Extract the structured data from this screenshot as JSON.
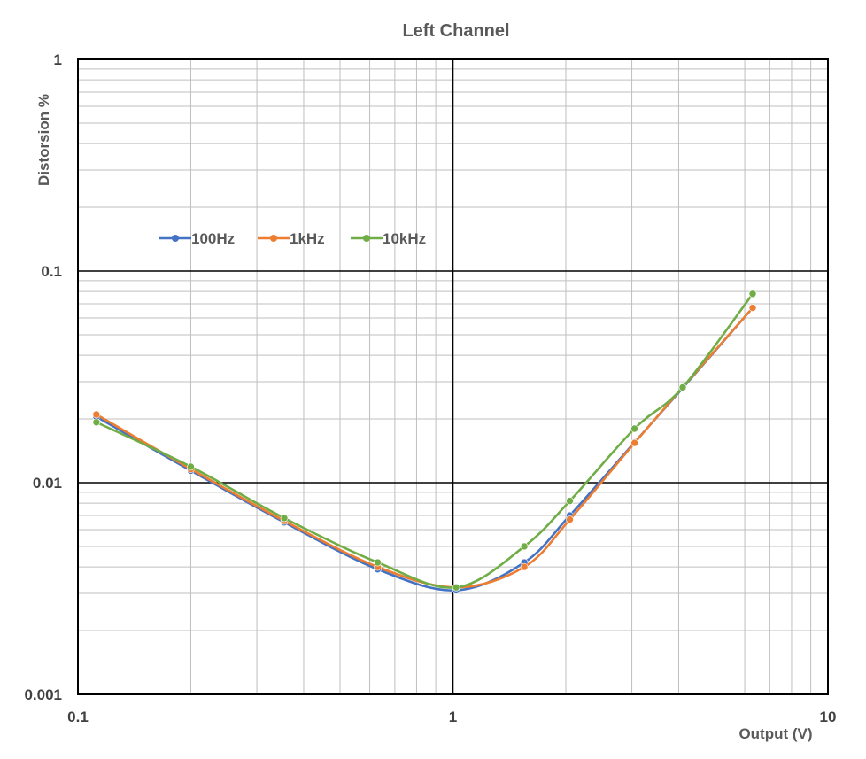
{
  "chart_data": {
    "type": "line",
    "title": "Left Channel",
    "xlabel": "Output (V)",
    "ylabel": "Distorsion %",
    "x_scale": "log",
    "y_scale": "log",
    "xlim": [
      0.1,
      10
    ],
    "ylim": [
      0.001,
      1
    ],
    "x_ticks": [
      "0.1",
      "1",
      "10"
    ],
    "y_ticks": [
      "0.001",
      "0.01",
      "0.1",
      "1"
    ],
    "grid": true,
    "legend_position": "upper-left inside plot",
    "series": [
      {
        "name": "100Hz",
        "color": "#4472C4",
        "x": [
          0.112,
          0.2,
          0.355,
          0.63,
          1.02,
          1.55,
          2.05,
          3.05,
          4.1,
          6.3
        ],
        "y": [
          0.0205,
          0.0114,
          0.0065,
          0.0039,
          0.0031,
          0.0042,
          0.007,
          0.0155,
          0.028,
          0.067
        ]
      },
      {
        "name": "1kHz",
        "color": "#ED7D31",
        "x": [
          0.112,
          0.2,
          0.355,
          0.63,
          1.02,
          1.55,
          2.05,
          3.05,
          4.1,
          6.3
        ],
        "y": [
          0.021,
          0.0116,
          0.0066,
          0.004,
          0.0032,
          0.004,
          0.0067,
          0.0154,
          0.0282,
          0.067
        ]
      },
      {
        "name": "10kHz",
        "color": "#70AD47",
        "x": [
          0.112,
          0.2,
          0.355,
          0.63,
          1.02,
          1.55,
          2.05,
          3.05,
          4.1,
          6.3
        ],
        "y": [
          0.0193,
          0.0119,
          0.0068,
          0.0042,
          0.0032,
          0.005,
          0.0082,
          0.018,
          0.0282,
          0.078
        ]
      }
    ]
  }
}
